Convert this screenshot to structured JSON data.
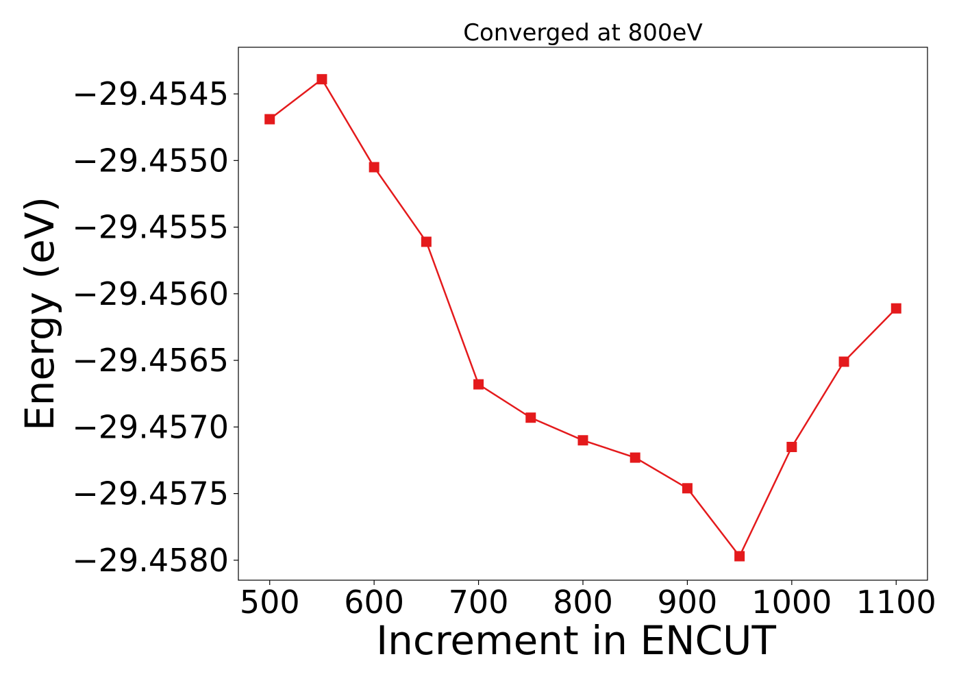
{
  "chart_data": {
    "type": "line",
    "title": "Converged at 800eV",
    "xlabel": "Increment in ENCUT",
    "ylabel": "Energy (eV)",
    "xlim": [
      470,
      1130
    ],
    "ylim": [
      -29.45815,
      -29.45415
    ],
    "xticks": [
      500,
      600,
      700,
      800,
      900,
      1000,
      1100
    ],
    "xtick_labels": [
      "500",
      "600",
      "700",
      "800",
      "900",
      "1000",
      "1100"
    ],
    "yticks": [
      -29.4545,
      -29.455,
      -29.4555,
      -29.456,
      -29.4565,
      -29.457,
      -29.4575,
      -29.458
    ],
    "ytick_labels": [
      "−29.4545",
      "−29.4550",
      "−29.4555",
      "−29.4560",
      "−29.4565",
      "−29.4570",
      "−29.4575",
      "−29.4580"
    ],
    "grid": false,
    "series": [
      {
        "color": "#e41a1c",
        "marker": "square",
        "x": [
          500,
          550,
          600,
          650,
          700,
          750,
          800,
          850,
          900,
          950,
          1000,
          1050,
          1100
        ],
        "y": [
          -29.45469,
          -29.45439,
          -29.45505,
          -29.45561,
          -29.45668,
          -29.45693,
          -29.4571,
          -29.45723,
          -29.45746,
          -29.45797,
          -29.45715,
          -29.45651,
          -29.45611
        ]
      }
    ]
  }
}
